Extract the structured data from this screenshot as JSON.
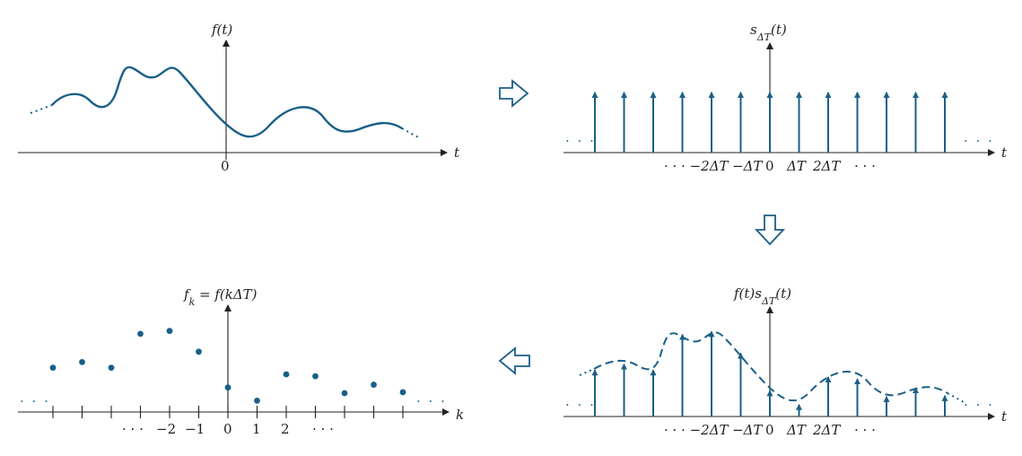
{
  "colors": {
    "accent": "#1a5f87",
    "axis": "#222222"
  },
  "panel_continuous": {
    "title": "f(t)",
    "axis_label": "t",
    "origin_label": "0",
    "left_ellipsis": "· · ·",
    "right_ellipsis": "· · ·"
  },
  "panel_impulse_train": {
    "title": "s_ΔT(t)",
    "axis_label": "t",
    "tick_labels": [
      "· · · −2ΔT",
      "−ΔT",
      "0",
      "ΔT",
      "2ΔT",
      "· · ·"
    ],
    "left_ellipsis": "· · ·",
    "right_ellipsis": "· · ·"
  },
  "panel_sampled_product": {
    "title": "f(t)s_ΔT(t)",
    "axis_label": "t",
    "tick_labels": [
      "· · · −2ΔT",
      "−ΔT",
      "0",
      "ΔT",
      "2ΔT",
      "· · ·"
    ],
    "left_ellipsis": "· · ·",
    "right_ellipsis": "· · ·"
  },
  "panel_discrete": {
    "title": "f_k = f(kΔT)",
    "axis_label": "k",
    "tick_labels": [
      "· · ·",
      "−2",
      "−1",
      "0",
      "1",
      "2",
      "· · ·"
    ],
    "left_ellipsis": "· · ·",
    "right_ellipsis": "· · ·"
  },
  "samples": {
    "k": [
      -6,
      -5,
      -4,
      -3,
      -2,
      -1,
      0,
      1,
      2,
      3,
      4,
      5,
      6
    ],
    "f_k": [
      0.47,
      0.53,
      0.47,
      0.83,
      0.86,
      0.64,
      0.26,
      0.12,
      0.4,
      0.38,
      0.2,
      0.29,
      0.21
    ]
  },
  "flow_arrows": [
    "right",
    "down",
    "left"
  ]
}
